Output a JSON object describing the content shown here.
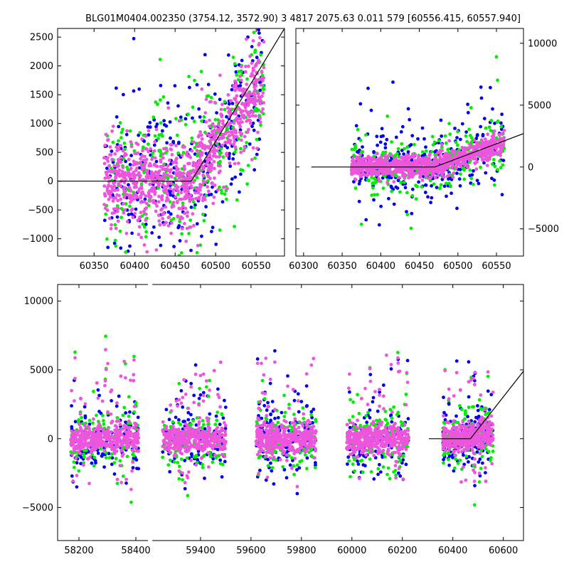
{
  "title": "BLG01M0404.002350 (3754.12, 3572.90)   3 4817 2075.63 0.011 579 [60556.415, 60557.940]",
  "colors": {
    "series_a": "#0000ee",
    "series_b": "#00ee00",
    "series_c": "#ee55dd",
    "model": "#000000"
  },
  "chart_data": [
    {
      "id": "top-left",
      "type": "scatter",
      "xlim": [
        60305,
        60585
      ],
      "ylim": [
        -1300,
        2650
      ],
      "xticks": [
        60350,
        60400,
        60450,
        60500,
        60550
      ],
      "yticks": [
        -1000,
        -500,
        0,
        500,
        1000,
        1500,
        2000,
        2500
      ],
      "ytick_side": "left",
      "model_line": {
        "x": [
          60305,
          60470,
          60585
        ],
        "y": [
          0,
          0,
          2650
        ]
      },
      "series": [
        {
          "color_key": "series_a",
          "x_range": [
            60362,
            60560
          ],
          "segments": [
            [
              60362,
              60470,
              0,
              400,
              700
            ],
            [
              60470,
              60560,
              0,
              2200,
              700
            ]
          ],
          "n": 330
        },
        {
          "color_key": "series_b",
          "x_range": [
            60362,
            60560
          ],
          "segments": [
            [
              60362,
              60470,
              0,
              350,
              800
            ],
            [
              60470,
              60560,
              0,
              2200,
              700
            ]
          ],
          "n": 300
        },
        {
          "color_key": "series_c",
          "x_range": [
            60362,
            60560
          ],
          "segments": [
            [
              60362,
              60470,
              0,
              0,
              400
            ],
            [
              60470,
              60560,
              0,
              2200,
              400
            ]
          ],
          "n": 900
        }
      ]
    },
    {
      "id": "top-right",
      "type": "scatter",
      "xlim": [
        60290,
        60585
      ],
      "ylim": [
        -7200,
        11200
      ],
      "xticks": [
        60300,
        60350,
        60400,
        60450,
        60500,
        60550
      ],
      "yticks": [
        -5000,
        0,
        5000,
        10000
      ],
      "ytick_side": "right",
      "model_line": {
        "x": [
          60310,
          60470,
          60585
        ],
        "y": [
          0,
          0,
          2700
        ]
      },
      "series": [
        {
          "color_key": "series_a",
          "x_range": [
            60362,
            60560
          ],
          "segments": [
            [
              60362,
              60470,
              0,
              800,
              1200
            ],
            [
              60470,
              60560,
              0,
              2000,
              1200
            ]
          ],
          "n": 330
        },
        {
          "color_key": "series_b",
          "x_range": [
            60362,
            60560
          ],
          "segments": [
            [
              60362,
              60470,
              0,
              400,
              2200
            ],
            [
              60470,
              60560,
              0,
              2000,
              2000
            ]
          ],
          "n": 260
        },
        {
          "color_key": "series_c",
          "x_range": [
            60362,
            60560
          ],
          "segments": [
            [
              60362,
              60470,
              0,
              0,
              400
            ],
            [
              60470,
              60560,
              0,
              1800,
              500
            ]
          ],
          "n": 900
        }
      ]
    },
    {
      "id": "bottom",
      "type": "scatter",
      "xlim": [
        58125,
        60680
      ],
      "ylim": [
        -7400,
        11200
      ],
      "xticks": [
        58200,
        58400,
        59400,
        59600,
        59800,
        60000,
        60200,
        60400,
        60600
      ],
      "xtick_labels": [
        "58200",
        "58400",
        "59400",
        "59600",
        "59800",
        "60000",
        "60200",
        "60400",
        "60600"
      ],
      "xtick_pos": [
        58200,
        58400,
        59400,
        59600,
        59800,
        60000,
        60200,
        60400,
        60600
      ],
      "yticks": [
        -5000,
        0,
        5000,
        10000
      ],
      "ytick_side": "left",
      "model_line": {
        "x": [
          60305,
          60470,
          60680
        ],
        "y": [
          0,
          0,
          4900
        ]
      },
      "seasons": [
        [
          58170,
          58410
        ],
        [
          59250,
          59500
        ],
        [
          59620,
          59860
        ],
        [
          59980,
          60225
        ],
        [
          60360,
          60560
        ]
      ],
      "series": [
        {
          "color_key": "series_a",
          "x_range": [
            58170,
            60560
          ],
          "segments": [],
          "n": 700
        },
        {
          "color_key": "series_b",
          "x_range": [
            58170,
            60560
          ],
          "segments": [],
          "n": 600
        },
        {
          "color_key": "series_c",
          "x_range": [
            58170,
            60560
          ],
          "segments": [],
          "n": 2200
        }
      ]
    }
  ]
}
